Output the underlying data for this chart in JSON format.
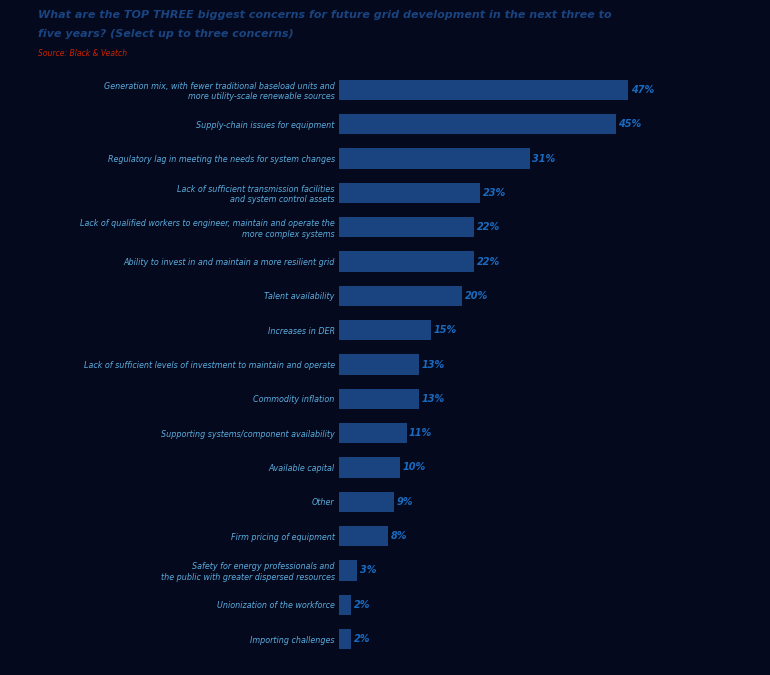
{
  "title_line1": "What are the TOP THREE biggest concerns for future grid development in the next three to",
  "title_line2": "five years? (Select up to three concerns)",
  "source": "Source: Black & Veatch",
  "categories": [
    "Generation mix, with fewer traditional baseload units and\nmore utility-scale renewable sources",
    "Supply-chain issues for equipment",
    "Regulatory lag in meeting the needs for system changes",
    "Lack of sufficient transmission facilities\nand system control assets",
    "Lack of qualified workers to engineer, maintain and operate the\nmore complex systems",
    "Ability to invest in and maintain a more resilient grid",
    "Talent availability",
    "Increases in DER",
    "Lack of sufficient levels of investment to maintain and operate",
    "Commodity inflation",
    "Supporting systems/component availability",
    "Available capital",
    "Other",
    "Firm pricing of equipment",
    "Safety for energy professionals and\nthe public with greater dispersed resources",
    "Unionization of the workforce",
    "Importing challenges"
  ],
  "values": [
    47,
    45,
    31,
    23,
    22,
    22,
    20,
    15,
    13,
    13,
    11,
    10,
    9,
    8,
    3,
    2,
    2
  ],
  "bar_color": "#1a4480",
  "label_color": "#1a6abf",
  "title_color": "#1a4480",
  "source_color": "#cc2200",
  "background_color": "#04091e",
  "text_color": "#5baddd",
  "bar_height": 0.6,
  "xlim": [
    0,
    55
  ]
}
